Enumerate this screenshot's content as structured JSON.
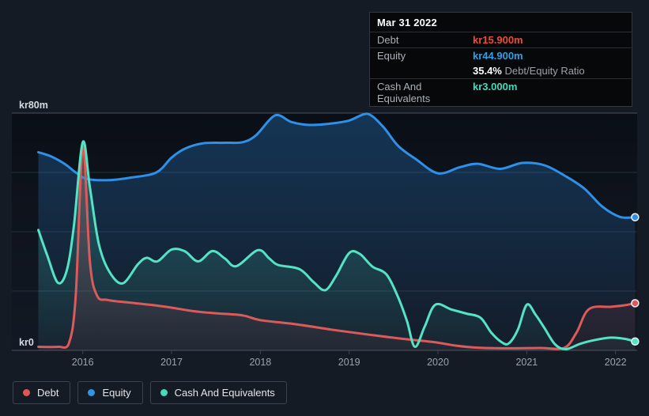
{
  "colors": {
    "background": "#151b24",
    "plot_top": "#0a0f17",
    "plot_bottom": "#131924",
    "grid_major": "#49525f",
    "grid_minor": "#273040",
    "tick": "#3c4551",
    "x_label": "#9aa3ae",
    "y_label": "#d5dae0",
    "debt": "#dc5a5a",
    "equity": "#2e90e8",
    "cash": "#54e3c4",
    "debt_text": "#ef4a3c",
    "equity_text": "#2f9fe8",
    "cash_text": "#41dabb"
  },
  "tooltip": {
    "date": "Mar 31 2022",
    "debt_label": "Debt",
    "debt_value": "kr15.900m",
    "equity_label": "Equity",
    "equity_value": "kr44.900m",
    "ratio_value": "35.4%",
    "ratio_label": "Debt/Equity Ratio",
    "cash_label": "Cash And Equivalents",
    "cash_value": "kr3.000m"
  },
  "legend": {
    "items": [
      {
        "label": "Debt",
        "color": "#e05656"
      },
      {
        "label": "Equity",
        "color": "#2d96e8"
      },
      {
        "label": "Cash And Equivalents",
        "color": "#46d9bb"
      }
    ]
  },
  "chart_data": {
    "type": "area",
    "title": "",
    "xlabel": "",
    "ylabel": "",
    "ylim": [
      0,
      80
    ],
    "xlim": [
      2015.5,
      2022.22
    ],
    "grid": true,
    "legend_position": "bottom-left",
    "y_axis_labels": {
      "top": "kr80m",
      "bottom": "kr0"
    },
    "y_gridlines": [
      0,
      20,
      40,
      60,
      80
    ],
    "x_ticks": [
      2016,
      2017,
      2018,
      2019,
      2020,
      2021,
      2022
    ],
    "x_tick_labels": [
      "2016",
      "2017",
      "2018",
      "2019",
      "2020",
      "2021",
      "2022"
    ],
    "series": [
      {
        "name": "Debt",
        "color": "#dc5a5a",
        "end_value": 15.9,
        "points": [
          [
            2015.5,
            1.2
          ],
          [
            2015.72,
            1.2
          ],
          [
            2015.84,
            2.0
          ],
          [
            2015.92,
            18.0
          ],
          [
            2016.0,
            68.8
          ],
          [
            2016.08,
            30.0
          ],
          [
            2016.16,
            18.5
          ],
          [
            2016.28,
            17.0
          ],
          [
            2016.5,
            16.2
          ],
          [
            2016.75,
            15.4
          ],
          [
            2017.0,
            14.4
          ],
          [
            2017.25,
            13.2
          ],
          [
            2017.5,
            12.5
          ],
          [
            2017.8,
            11.8
          ],
          [
            2018.0,
            10.2
          ],
          [
            2018.4,
            8.8
          ],
          [
            2018.8,
            7.0
          ],
          [
            2019.2,
            5.4
          ],
          [
            2019.6,
            3.9
          ],
          [
            2019.95,
            2.8
          ],
          [
            2020.2,
            1.6
          ],
          [
            2020.45,
            0.9
          ],
          [
            2020.8,
            0.7
          ],
          [
            2021.15,
            0.8
          ],
          [
            2021.42,
            0.8
          ],
          [
            2021.56,
            6.0
          ],
          [
            2021.7,
            13.9
          ],
          [
            2021.95,
            14.7
          ],
          [
            2022.1,
            15.2
          ],
          [
            2022.22,
            15.9
          ]
        ]
      },
      {
        "name": "Equity",
        "color": "#2e90e8",
        "end_value": 44.9,
        "points": [
          [
            2015.5,
            66.8
          ],
          [
            2015.65,
            65.3
          ],
          [
            2015.8,
            62.8
          ],
          [
            2015.92,
            60.0
          ],
          [
            2016.05,
            57.8
          ],
          [
            2016.3,
            57.4
          ],
          [
            2016.55,
            58.3
          ],
          [
            2016.83,
            60.0
          ],
          [
            2017.0,
            65.0
          ],
          [
            2017.15,
            68.0
          ],
          [
            2017.35,
            69.8
          ],
          [
            2017.6,
            70.0
          ],
          [
            2017.8,
            70.2
          ],
          [
            2017.95,
            72.5
          ],
          [
            2018.17,
            79.3
          ],
          [
            2018.35,
            77.0
          ],
          [
            2018.55,
            76.0
          ],
          [
            2018.8,
            76.5
          ],
          [
            2019.0,
            77.5
          ],
          [
            2019.2,
            79.8
          ],
          [
            2019.38,
            75.5
          ],
          [
            2019.55,
            69.0
          ],
          [
            2019.75,
            64.5
          ],
          [
            2020.0,
            59.7
          ],
          [
            2020.25,
            61.8
          ],
          [
            2020.45,
            62.9
          ],
          [
            2020.7,
            61.2
          ],
          [
            2020.95,
            63.2
          ],
          [
            2021.2,
            62.4
          ],
          [
            2021.45,
            58.5
          ],
          [
            2021.65,
            54.5
          ],
          [
            2021.85,
            48.5
          ],
          [
            2022.05,
            45.0
          ],
          [
            2022.22,
            44.9
          ]
        ]
      },
      {
        "name": "Cash And Equivalents",
        "color": "#54e3c4",
        "end_value": 3.0,
        "points": [
          [
            2015.5,
            40.6
          ],
          [
            2015.6,
            32.0
          ],
          [
            2015.72,
            22.8
          ],
          [
            2015.82,
            27.0
          ],
          [
            2015.9,
            42.0
          ],
          [
            2016.0,
            70.2
          ],
          [
            2016.08,
            55.0
          ],
          [
            2016.18,
            36.0
          ],
          [
            2016.3,
            26.5
          ],
          [
            2016.45,
            22.6
          ],
          [
            2016.62,
            29.0
          ],
          [
            2016.72,
            31.2
          ],
          [
            2016.84,
            30.0
          ],
          [
            2017.0,
            34.0
          ],
          [
            2017.15,
            33.4
          ],
          [
            2017.3,
            30.0
          ],
          [
            2017.46,
            33.5
          ],
          [
            2017.6,
            31.0
          ],
          [
            2017.73,
            28.4
          ],
          [
            2017.97,
            33.8
          ],
          [
            2018.1,
            31.0
          ],
          [
            2018.2,
            28.8
          ],
          [
            2018.44,
            27.4
          ],
          [
            2018.6,
            23.0
          ],
          [
            2018.73,
            20.3
          ],
          [
            2018.85,
            25.0
          ],
          [
            2019.0,
            32.8
          ],
          [
            2019.12,
            32.5
          ],
          [
            2019.26,
            28.3
          ],
          [
            2019.42,
            25.6
          ],
          [
            2019.55,
            18.0
          ],
          [
            2019.65,
            10.0
          ],
          [
            2019.74,
            1.2
          ],
          [
            2019.85,
            8.0
          ],
          [
            2019.97,
            15.4
          ],
          [
            2020.15,
            13.8
          ],
          [
            2020.32,
            12.4
          ],
          [
            2020.48,
            11.0
          ],
          [
            2020.6,
            6.0
          ],
          [
            2020.72,
            2.7
          ],
          [
            2020.8,
            2.4
          ],
          [
            2020.9,
            7.0
          ],
          [
            2021.0,
            15.4
          ],
          [
            2021.1,
            12.0
          ],
          [
            2021.2,
            7.5
          ],
          [
            2021.32,
            2.0
          ],
          [
            2021.44,
            0.4
          ],
          [
            2021.6,
            2.2
          ],
          [
            2021.75,
            3.4
          ],
          [
            2021.95,
            4.3
          ],
          [
            2022.1,
            3.9
          ],
          [
            2022.22,
            3.0
          ]
        ]
      }
    ]
  }
}
